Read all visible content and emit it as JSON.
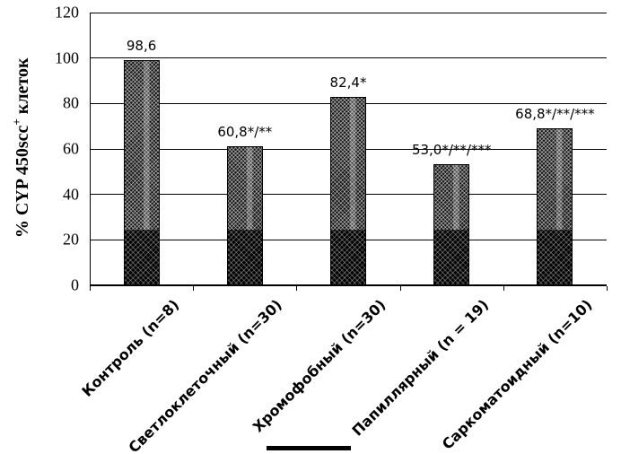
{
  "figure": {
    "ylabel_prefix": "% CYP 450scc",
    "ylabel_sup": "+",
    "ylabel_suffix": " клеток"
  },
  "chart_data": {
    "type": "bar",
    "title": "",
    "xlabel": "",
    "ylabel": "% CYP 450scc+ клеток",
    "ylim": [
      0,
      120
    ],
    "yticks": [
      0,
      20,
      40,
      60,
      80,
      100,
      120
    ],
    "grid": true,
    "legend": false,
    "categories": [
      "Контроль (n=8)",
      "Светлоклеточный (n=30)",
      "Хромофобный (n=30)",
      "Папиллярный (n = 19)",
      "Саркоматоидный (n=10)"
    ],
    "values": [
      98.6,
      60.8,
      82.4,
      53.0,
      68.8
    ],
    "data_labels": [
      "98,6",
      "60,8*/**",
      "82,4*",
      "53,0*/**/***",
      "68,8*/**/***"
    ],
    "bar_style": {
      "fill": "#161616",
      "pattern": "crosshatch",
      "dark_bottom_band": true
    }
  }
}
